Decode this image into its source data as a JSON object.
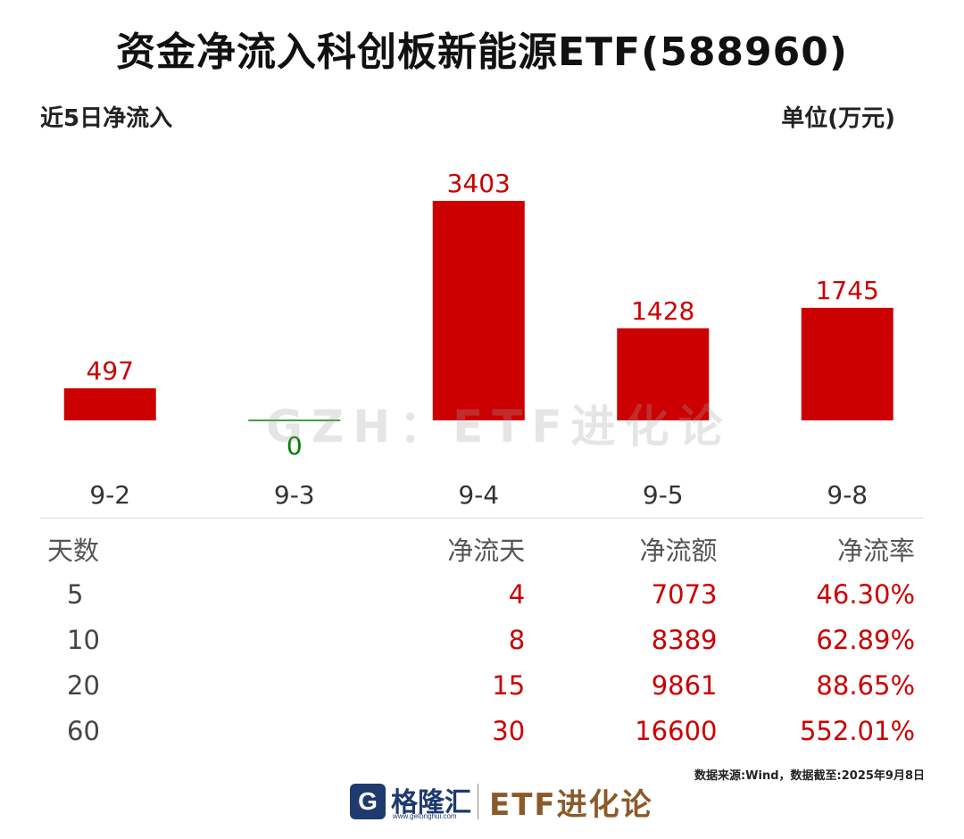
{
  "title": "资金净流入科创板新能源ETF(588960)",
  "subtitle": "近5日净流入",
  "unit": "单位(万元)",
  "watermark": "GZH：ETF进化论",
  "colors": {
    "positive": "#cc0000",
    "zero": "#008000",
    "text": "#1a1a1a"
  },
  "chart_data": {
    "type": "bar",
    "categories": [
      "9-2",
      "9-3",
      "9-4",
      "9-5",
      "9-8"
    ],
    "values": [
      497,
      0,
      3403,
      1428,
      1745
    ],
    "data_labels": [
      "497",
      "0",
      "3403",
      "1428",
      "1745"
    ],
    "ylim": [
      0,
      3403
    ],
    "grid": false,
    "legend": "none"
  },
  "table": {
    "headers": {
      "days": "天数",
      "net_days": "净流天",
      "net_amount": "净流额",
      "net_rate": "净流率"
    },
    "rows": [
      {
        "days": "5",
        "net_days": "4",
        "net_amount": "7073",
        "net_rate": "46.30%"
      },
      {
        "days": "10",
        "net_days": "8",
        "net_amount": "8389",
        "net_rate": "62.89%"
      },
      {
        "days": "20",
        "net_days": "15",
        "net_amount": "9861",
        "net_rate": "88.65%"
      },
      {
        "days": "60",
        "net_days": "30",
        "net_amount": "16600",
        "net_rate": "552.01%"
      }
    ]
  },
  "source": "数据来源:Wind，数据截至:2025年9月8日",
  "footer": {
    "logo_icon": "G",
    "logo_name": "格隆汇",
    "logo_url": "www.getonghui.com",
    "brand": "ETF进化论"
  }
}
